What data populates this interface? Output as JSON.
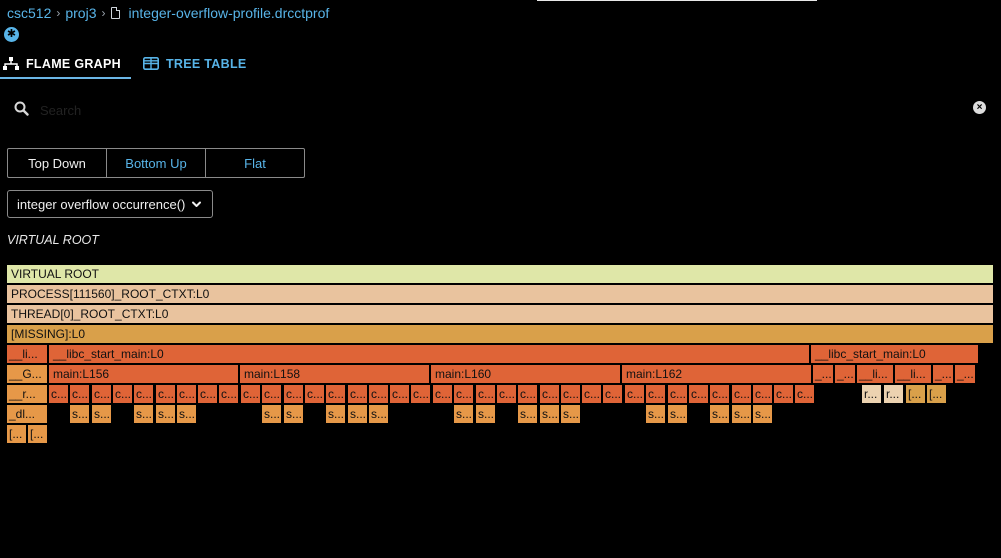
{
  "breadcrumb": {
    "items": [
      "csc512",
      "proj3"
    ],
    "file": "integer-overflow-profile.drcctprof"
  },
  "tabs": [
    {
      "label": "FLAME GRAPH"
    },
    {
      "label": "TREE TABLE"
    }
  ],
  "search": {
    "placeholder": "Search",
    "value": ""
  },
  "view_modes": [
    "Top Down",
    "Bottom Up",
    "Flat"
  ],
  "metric_select": {
    "value": "integer overflow occurrence()"
  },
  "root_label": "VIRTUAL ROOT",
  "colors": {
    "accent": "#58b4e8",
    "root": "#dfe7a8",
    "light": "#e9c39e",
    "mid": "#d9a04a",
    "main": "#df6437",
    "leaf": "#e69848",
    "pale": "#ecd2b0"
  },
  "flame": {
    "rows": [
      [
        {
          "label": "VIRTUAL ROOT",
          "frac": 1.0,
          "color": "root"
        }
      ],
      [
        {
          "label": "PROCESS[111560]_ROOT_CTXT:L0",
          "frac": 1.0,
          "color": "light"
        }
      ],
      [
        {
          "label": "THREAD[0]_ROOT_CTXT:L0",
          "frac": 1.0,
          "color": "light"
        }
      ],
      [
        {
          "label": "[MISSING]:L0",
          "frac": 1.0,
          "color": "mid"
        }
      ],
      [
        {
          "label": "__li...",
          "frac": 0.0427,
          "color": "main"
        },
        {
          "label": "__libc_start_main:L0",
          "frac": 0.7727,
          "color": "main"
        },
        {
          "label": "__libc_start_main:L0",
          "frac": 0.1715,
          "color": "main"
        }
      ],
      [
        {
          "label": "__G...",
          "frac": 0.0427,
          "color": "leaf"
        },
        {
          "label": "main:L156",
          "frac": 0.1938,
          "color": "main"
        },
        {
          "label": "main:L158",
          "frac": 0.1938,
          "color": "main"
        },
        {
          "label": "main:L160",
          "frac": 0.1938,
          "color": "main"
        },
        {
          "label": "main:L162",
          "frac": 0.1938,
          "color": "main"
        },
        {
          "label": "_...",
          "frac": 0.0224,
          "color": "main"
        },
        {
          "label": "_...",
          "frac": 0.0224,
          "color": "main"
        },
        {
          "label": "__li...",
          "frac": 0.0388,
          "color": "main"
        },
        {
          "label": "__li...",
          "frac": 0.0388,
          "color": "main"
        },
        {
          "label": "_...",
          "frac": 0.0224,
          "color": "main"
        },
        {
          "label": "_...",
          "frac": 0.0224,
          "color": "main"
        }
      ]
    ],
    "row6_left": {
      "label": "__r...",
      "color": "leaf"
    },
    "row7_left": {
      "label": "_dl...",
      "color": "leaf"
    },
    "row8_left": [
      {
        "label": "[..."
      },
      {
        "label": "[..."
      }
    ],
    "c_label": "c...",
    "s_label": "s...",
    "r_label": "r...",
    "b_label": "[..."
  }
}
